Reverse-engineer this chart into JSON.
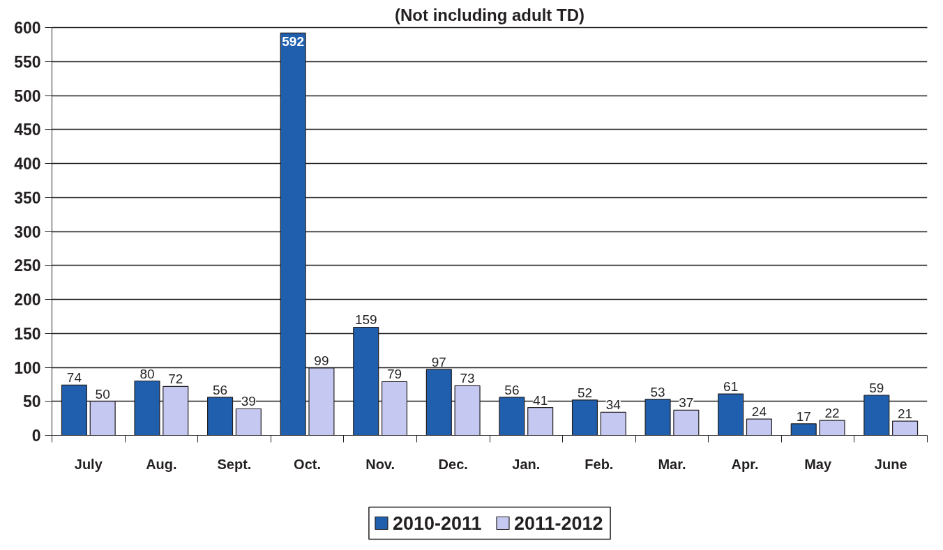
{
  "chart_data": {
    "type": "bar",
    "subtitle": "(Not including adult TD)",
    "categories": [
      "July",
      "Aug.",
      "Sept.",
      "Oct.",
      "Nov.",
      "Dec.",
      "Jan.",
      "Feb.",
      "Mar.",
      "Apr.",
      "May",
      "June"
    ],
    "series": [
      {
        "name": "2010-2011",
        "color": "#1f5fae",
        "values": [
          74,
          80,
          56,
          592,
          159,
          97,
          56,
          52,
          53,
          61,
          17,
          59
        ]
      },
      {
        "name": "2011-2012",
        "color": "#c5c8f0",
        "values": [
          50,
          72,
          39,
          99,
          79,
          73,
          41,
          34,
          37,
          24,
          22,
          21
        ]
      }
    ],
    "ylim": [
      0,
      600
    ],
    "yticks": [
      0,
      50,
      100,
      150,
      200,
      250,
      300,
      350,
      400,
      450,
      500,
      550,
      600
    ],
    "grid": "y",
    "legend": "bottom",
    "data_labels": true
  }
}
